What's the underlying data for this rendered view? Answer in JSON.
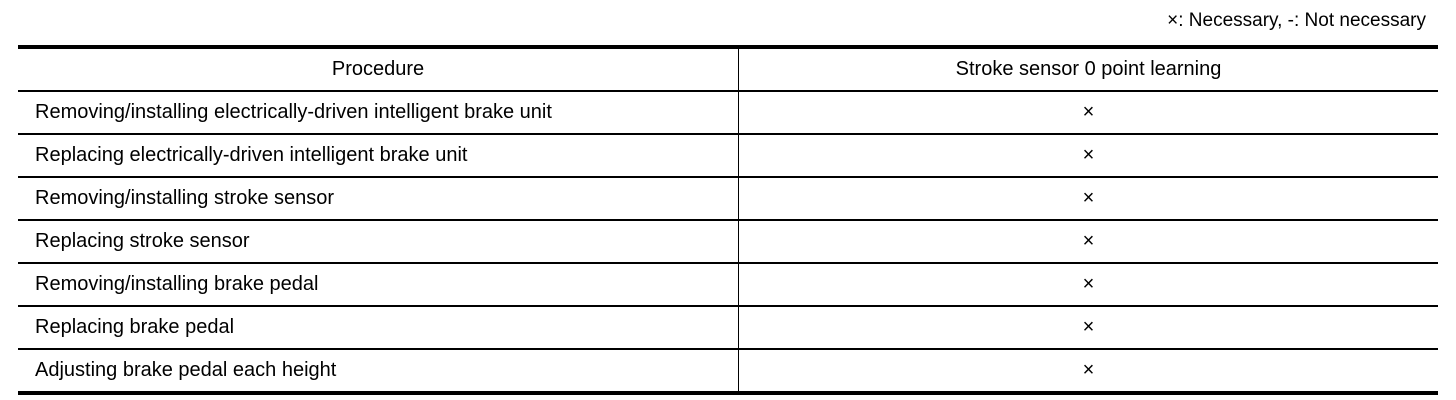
{
  "legend": "×: Necessary, -: Not necessary",
  "table": {
    "headers": [
      "Procedure",
      "Stroke sensor 0 point learning"
    ],
    "rows": [
      {
        "procedure": "Removing/installing electrically-driven intelligent brake unit",
        "value": "×"
      },
      {
        "procedure": "Replacing electrically-driven intelligent brake unit",
        "value": "×"
      },
      {
        "procedure": "Removing/installing stroke sensor",
        "value": "×"
      },
      {
        "procedure": "Replacing stroke sensor",
        "value": "×"
      },
      {
        "procedure": "Removing/installing brake pedal",
        "value": "×"
      },
      {
        "procedure": "Replacing brake pedal",
        "value": "×"
      },
      {
        "procedure": "Adjusting brake pedal each height",
        "value": "×"
      }
    ]
  }
}
